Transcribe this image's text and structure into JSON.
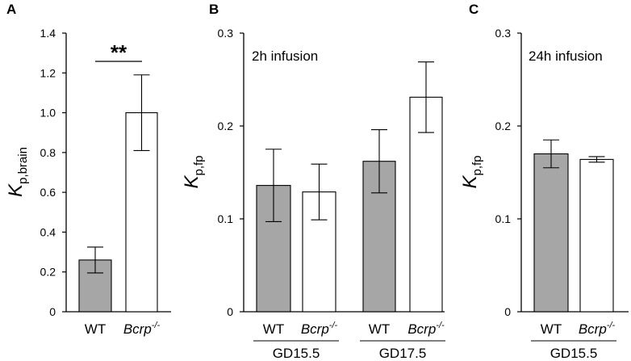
{
  "colors": {
    "wt": "#a6a6a6",
    "bcrp": "#ffffff",
    "axis": "#000000"
  },
  "chart_data": [
    {
      "panel": "A",
      "type": "bar",
      "ylabel_main": "K",
      "ylabel_sub": "p,brain",
      "ylim": [
        0,
        1.4
      ],
      "yticks": [
        "0",
        "0.2",
        "0.4",
        "0.6",
        "0.8",
        "1.0",
        "1.2",
        "1.4"
      ],
      "categories": [
        {
          "label": "WT",
          "italic": false,
          "sup": ""
        },
        {
          "label": "Bcrp",
          "italic": true,
          "sup": "-/-"
        }
      ],
      "values": [
        0.26,
        1.0
      ],
      "errors": [
        0.065,
        0.19
      ],
      "fills": [
        "wt",
        "bcrp"
      ],
      "annotation": "**"
    },
    {
      "panel": "B",
      "type": "bar",
      "ylabel_main": "K",
      "ylabel_sub": "p,fp",
      "ylim": [
        0,
        0.3
      ],
      "yticks": [
        "0",
        "0.1",
        "0.2",
        "0.3"
      ],
      "annotation": "2h infusion",
      "categories": [
        {
          "label": "WT",
          "italic": false,
          "sup": ""
        },
        {
          "label": "Bcrp",
          "italic": true,
          "sup": "-/-"
        },
        {
          "label": "WT",
          "italic": false,
          "sup": ""
        },
        {
          "label": "Bcrp",
          "italic": true,
          "sup": "-/-"
        }
      ],
      "values": [
        0.136,
        0.129,
        0.162,
        0.231
      ],
      "errors": [
        0.039,
        0.03,
        0.034,
        0.038
      ],
      "fills": [
        "wt",
        "bcrp",
        "wt",
        "bcrp"
      ],
      "groups": [
        {
          "label": "GD15.5",
          "members": [
            0,
            1
          ]
        },
        {
          "label": "GD17.5",
          "members": [
            2,
            3
          ]
        }
      ]
    },
    {
      "panel": "C",
      "type": "bar",
      "ylabel_main": "K",
      "ylabel_sub": "p,fp",
      "ylim": [
        0,
        0.3
      ],
      "yticks": [
        "0",
        "0.1",
        "0.2",
        "0.3"
      ],
      "annotation": "24h infusion",
      "categories": [
        {
          "label": "WT",
          "italic": false,
          "sup": ""
        },
        {
          "label": "Bcrp",
          "italic": true,
          "sup": "-/-"
        }
      ],
      "values": [
        0.17,
        0.164
      ],
      "errors": [
        0.015,
        0.003
      ],
      "fills": [
        "wt",
        "bcrp"
      ],
      "groups": [
        {
          "label": "GD15.5",
          "members": [
            0,
            1
          ]
        }
      ]
    }
  ]
}
